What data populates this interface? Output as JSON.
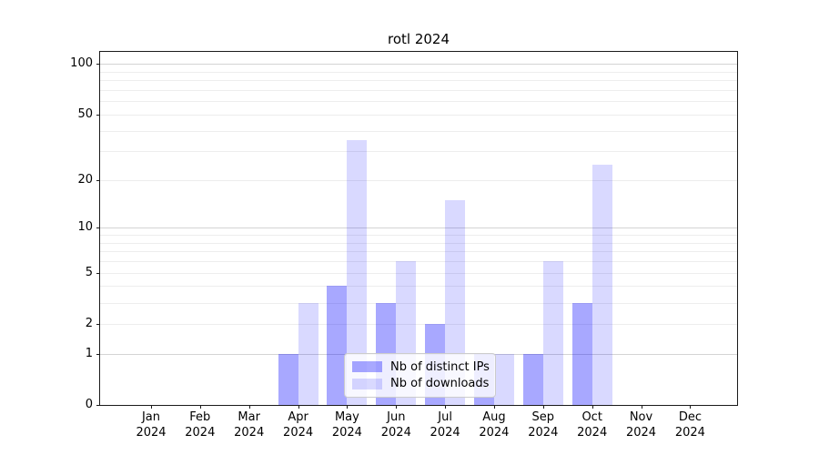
{
  "chart_data": {
    "type": "bar",
    "title": "rotl 2024",
    "scale": "log1p",
    "categories": [
      {
        "month": "Jan",
        "year": "2024"
      },
      {
        "month": "Feb",
        "year": "2024"
      },
      {
        "month": "Mar",
        "year": "2024"
      },
      {
        "month": "Apr",
        "year": "2024"
      },
      {
        "month": "May",
        "year": "2024"
      },
      {
        "month": "Jun",
        "year": "2024"
      },
      {
        "month": "Jul",
        "year": "2024"
      },
      {
        "month": "Aug",
        "year": "2024"
      },
      {
        "month": "Sep",
        "year": "2024"
      },
      {
        "month": "Oct",
        "year": "2024"
      },
      {
        "month": "Nov",
        "year": "2024"
      },
      {
        "month": "Dec",
        "year": "2024"
      }
    ],
    "series": [
      {
        "name": "Nb of distinct IPs",
        "color": "#0000ff",
        "alpha": 0.34,
        "values": [
          0,
          0,
          0,
          1,
          4,
          3,
          2,
          1,
          1,
          3,
          0,
          0
        ]
      },
      {
        "name": "Nb of downloads",
        "color": "#0000ff",
        "alpha": 0.15,
        "values": [
          0,
          0,
          0,
          3,
          35,
          6,
          15,
          1,
          6,
          25,
          0,
          0
        ]
      }
    ],
    "yticks": [
      0,
      1,
      2,
      5,
      10,
      20,
      50,
      100
    ],
    "ylim": [
      0,
      118
    ],
    "grid": {
      "major": [
        1,
        10,
        100
      ],
      "minor": [
        2,
        3,
        4,
        5,
        6,
        7,
        8,
        9,
        20,
        30,
        40,
        50,
        60,
        70,
        80,
        90
      ]
    },
    "colors": {
      "grid_minor": "#ededed",
      "grid_major": "#d4d4d4",
      "axis": "#1a1a1a",
      "legend_border": "#cccccc"
    },
    "legend": {
      "position": "lower center"
    }
  }
}
